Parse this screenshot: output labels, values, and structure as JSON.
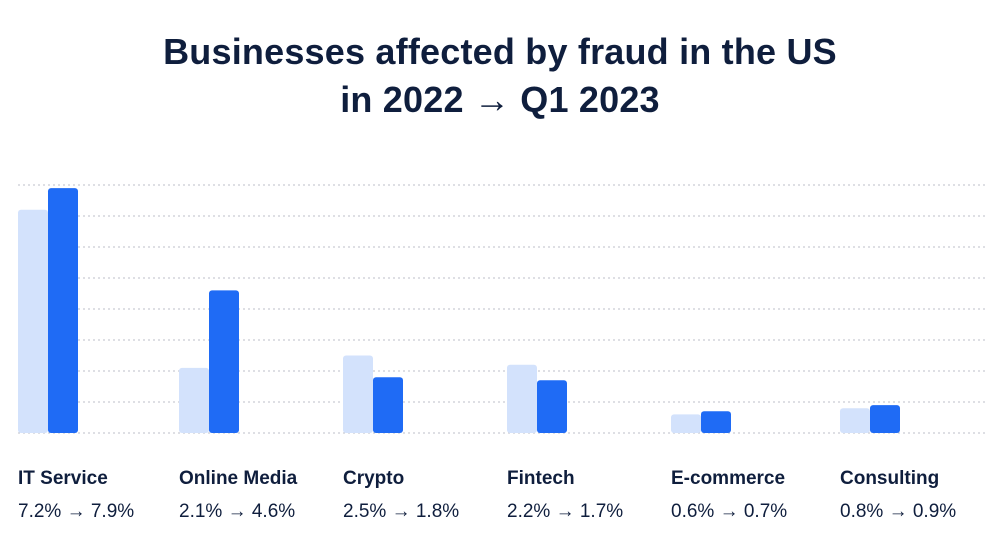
{
  "chart_data": {
    "type": "bar",
    "title_line1": "Businesses affected by fraud in the US",
    "title_line2": "in 2022 → Q1 2023",
    "categories": [
      "IT Service",
      "Online Media",
      "Crypto",
      "Fintech",
      "E-commerce",
      "Consulting"
    ],
    "value_labels": [
      "7.2% → 7.9%",
      "2.1% → 4.6%",
      "2.5% → 1.8%",
      "2.2% → 1.7%",
      "0.6% → 0.7%",
      "0.8% → 0.9%"
    ],
    "series": [
      {
        "values": [
          7.2,
          2.1,
          2.5,
          2.2,
          0.6,
          0.8
        ],
        "color": "#d3e2fc"
      },
      {
        "values": [
          7.9,
          4.6,
          1.8,
          1.7,
          0.7,
          0.9
        ],
        "color": "#1f6bf5"
      }
    ],
    "ylim": [
      0,
      8
    ],
    "grid": true,
    "grid_color": "#c9ccd3"
  }
}
